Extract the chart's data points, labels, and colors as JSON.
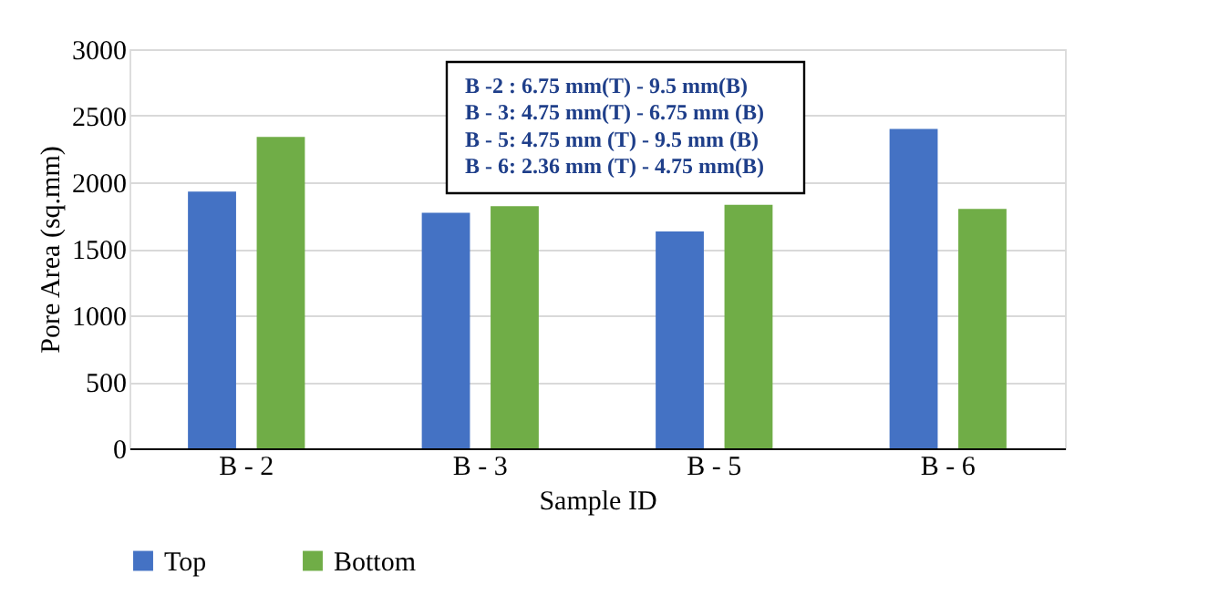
{
  "chart_data": {
    "type": "bar",
    "xlabel": "Sample ID",
    "ylabel": "Pore Area (sq.mm)",
    "categories": [
      "B - 2",
      "B - 3",
      "B - 5",
      "B - 6"
    ],
    "series": [
      {
        "name": "Top",
        "color": "#4472c4",
        "values": [
          1930,
          1770,
          1630,
          2400
        ]
      },
      {
        "name": "Bottom",
        "color": "#70ad47",
        "values": [
          2340,
          1820,
          1830,
          1800
        ]
      }
    ],
    "ylim": [
      0,
      3000
    ],
    "yticks": [
      0,
      500,
      1000,
      1500,
      2000,
      2500,
      3000
    ],
    "grid": "y",
    "legend": "bottom",
    "annotations": [
      "B -2 : 6.75 mm(T) - 9.5 mm(B)",
      "B - 3: 4.75 mm(T) - 6.75 mm (B)",
      "B - 5: 4.75 mm (T) - 9.5 mm (B)",
      "B - 6: 2.36 mm (T) - 4.75 mm(B)"
    ]
  }
}
